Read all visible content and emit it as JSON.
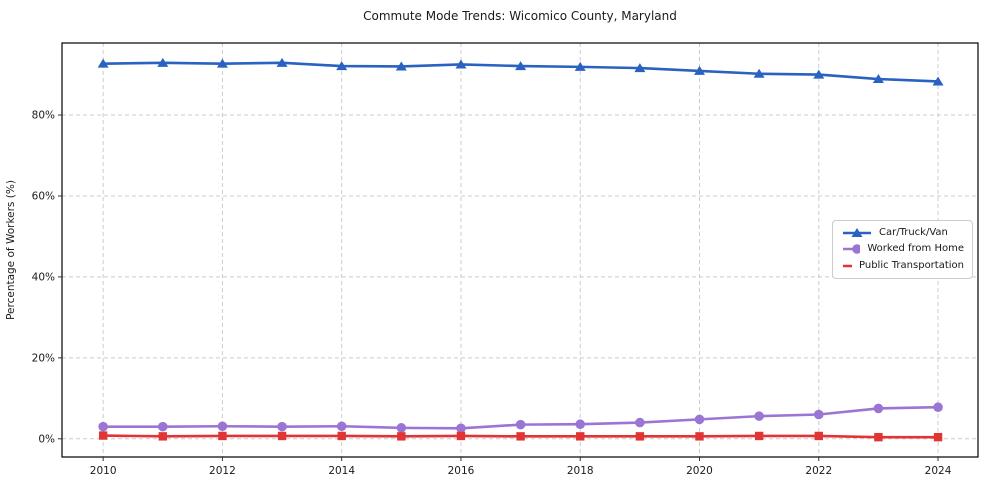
{
  "chart_data": {
    "type": "line",
    "title": "Commute Mode Trends: Wicomico County, Maryland",
    "xlabel": "",
    "ylabel": "Percentage of Workers (%)",
    "x": [
      2010,
      2011,
      2012,
      2013,
      2014,
      2015,
      2016,
      2017,
      2018,
      2019,
      2020,
      2021,
      2022,
      2023,
      2024
    ],
    "series": [
      {
        "name": "Car/Truck/Van",
        "color": "#2a62c2",
        "marker": "triangle",
        "values": [
          92.7,
          92.9,
          92.7,
          92.9,
          92.1,
          92.0,
          92.5,
          92.1,
          91.9,
          91.6,
          90.9,
          90.2,
          90.0,
          88.9,
          88.3
        ]
      },
      {
        "name": "Worked from Home",
        "color": "#9b75d4",
        "marker": "circle",
        "values": [
          3.0,
          3.0,
          3.1,
          3.0,
          3.1,
          2.7,
          2.6,
          3.5,
          3.6,
          4.0,
          4.8,
          5.6,
          6.0,
          7.5,
          7.8
        ]
      },
      {
        "name": "Public Transportation",
        "color": "#e13535",
        "marker": "square",
        "values": [
          0.8,
          0.6,
          0.7,
          0.7,
          0.7,
          0.6,
          0.7,
          0.6,
          0.6,
          0.6,
          0.6,
          0.7,
          0.7,
          0.4,
          0.4
        ]
      }
    ],
    "xticks": [
      2010,
      2012,
      2014,
      2016,
      2018,
      2020,
      2022,
      2024
    ],
    "xtick_labels": [
      "2010",
      "2012",
      "2014",
      "2016",
      "2018",
      "2020",
      "2022",
      "2024"
    ],
    "ytick_values": [
      0,
      20,
      40,
      60,
      80
    ],
    "ytick_labels": [
      "0%",
      "20%",
      "40%",
      "60%",
      "80%"
    ],
    "xlim": [
      2009.31,
      2024.67
    ],
    "ylim": [
      -4.5,
      97.8
    ],
    "grid": "dashed",
    "legend_position": "center-right",
    "colors": {
      "background": "#ffffff",
      "grid": "#cccccc",
      "axis_border": "#000000",
      "text": "#1a1a1a"
    }
  }
}
